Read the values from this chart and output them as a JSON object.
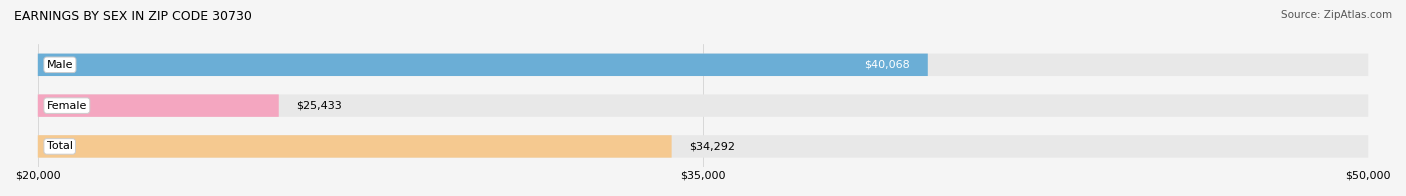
{
  "title": "EARNINGS BY SEX IN ZIP CODE 30730",
  "source": "Source: ZipAtlas.com",
  "categories": [
    "Male",
    "Female",
    "Total"
  ],
  "values": [
    40068,
    25433,
    34292
  ],
  "bar_colors": [
    "#6baed6",
    "#f4a6c0",
    "#f5c990"
  ],
  "bar_bg_color": "#e8e8e8",
  "value_labels": [
    "$40,068",
    "$25,433",
    "$34,292"
  ],
  "value_label_inside": [
    true,
    false,
    false
  ],
  "xmin": 20000,
  "xmax": 50000,
  "xticks": [
    20000,
    35000,
    50000
  ],
  "xtick_labels": [
    "$20,000",
    "$35,000",
    "$50,000"
  ],
  "figsize": [
    14.06,
    1.96
  ],
  "dpi": 100,
  "bg_color": "#f5f5f5",
  "title_fontsize": 9,
  "source_fontsize": 7.5,
  "label_fontsize": 8,
  "value_fontsize": 8
}
